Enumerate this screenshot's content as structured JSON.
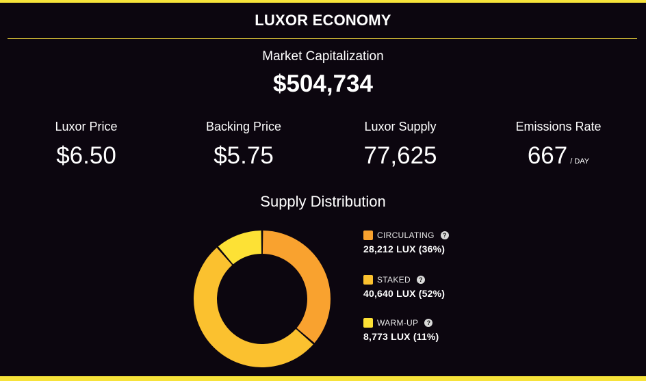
{
  "header": {
    "title": "LUXOR ECONOMY"
  },
  "market_cap": {
    "label": "Market Capitalization",
    "value": "$504,734"
  },
  "stats": {
    "luxor_price": {
      "label": "Luxor Price",
      "value": "$6.50"
    },
    "backing_price": {
      "label": "Backing Price",
      "value": "$5.75"
    },
    "luxor_supply": {
      "label": "Luxor Supply",
      "value": "77,625"
    },
    "emissions_rate": {
      "label": "Emissions Rate",
      "value": "667",
      "unit": "/ DAY"
    }
  },
  "supply_distribution": {
    "title": "Supply Distribution",
    "help_glyph": "?",
    "segments": [
      {
        "name": "CIRCULATING",
        "value_text": "28,212 LUX (36%)",
        "amount": 28212,
        "color": "#f9a22f"
      },
      {
        "name": "STAKED",
        "value_text": "40,640 LUX (52%)",
        "amount": 40640,
        "color": "#fbc12f"
      },
      {
        "name": "WARM-UP",
        "value_text": "8,773 LUX (11%)",
        "amount": 8773,
        "color": "#fde135"
      }
    ]
  },
  "colors": {
    "background": "#0c060f",
    "accent": "#f7e33a"
  }
}
